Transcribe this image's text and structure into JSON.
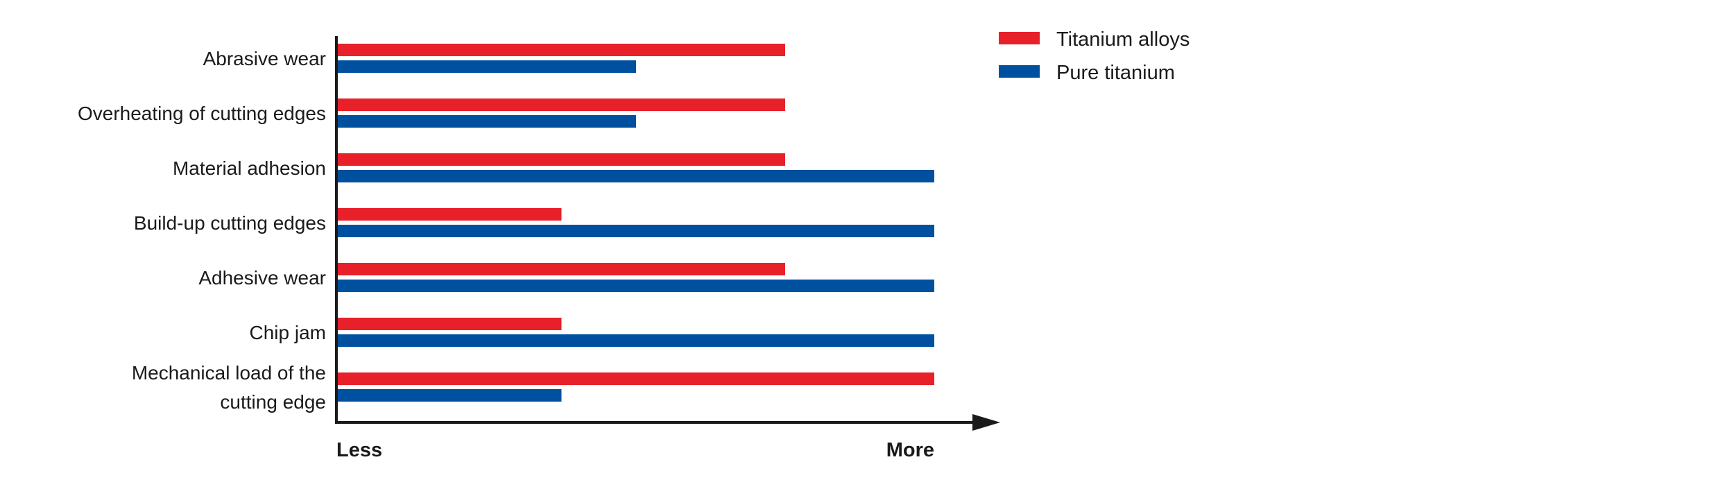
{
  "chart_data": {
    "type": "bar",
    "orientation": "horizontal",
    "categories": [
      [
        "Abrasive wear"
      ],
      [
        "Overheating of cutting edges"
      ],
      [
        "Material adhesion"
      ],
      [
        "Build-up cutting edges"
      ],
      [
        "Adhesive wear"
      ],
      [
        "Chip jam"
      ],
      [
        "Mechanical load of the",
        "cutting edge"
      ]
    ],
    "series": [
      {
        "name": "Titanium alloys",
        "color": "#e8202a",
        "values": [
          3,
          3,
          3,
          1.5,
          3,
          1.5,
          4
        ]
      },
      {
        "name": "Pure titanium",
        "color": "#0050a0",
        "values": [
          2,
          2,
          4,
          4,
          4,
          4,
          1.5
        ]
      }
    ],
    "xlim": [
      0,
      4
    ],
    "axis_start_label": "Less",
    "axis_end_label": "More",
    "legend_position": "top-right",
    "grid": false
  }
}
